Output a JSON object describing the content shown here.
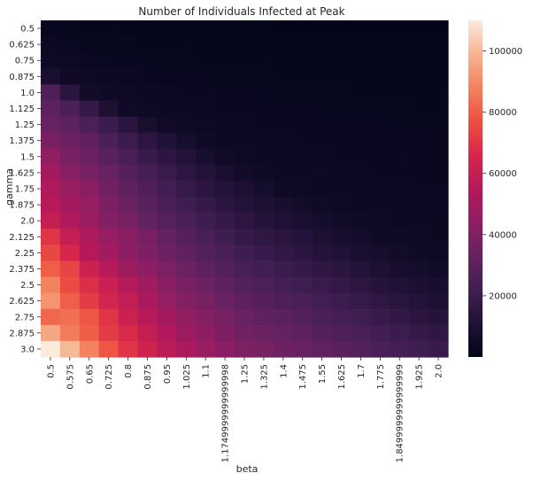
{
  "chart_data": {
    "type": "heatmap",
    "title": "Number of Individuals Infected at Peak",
    "xlabel": "beta",
    "ylabel": "gamma",
    "x_categories": [
      "0.5",
      "0.575",
      "0.65",
      "0.725",
      "0.8",
      "0.875",
      "0.95",
      "1.025",
      "1.1",
      "1.1749999999999998",
      "1.25",
      "1.325",
      "1.4",
      "1.475",
      "1.55",
      "1.625",
      "1.7",
      "1.775",
      "1.8499999999999999",
      "1.925",
      "2.0"
    ],
    "y_categories": [
      "0.5",
      "0.625",
      "0.75",
      "0.875",
      "1.0",
      "1.125",
      "1.25",
      "1.375",
      "1.5",
      "1.625",
      "1.75",
      "1.875",
      "2.0",
      "2.125",
      "2.25",
      "2.375",
      "2.5",
      "2.625",
      "2.75",
      "2.875",
      "3.0"
    ],
    "colorbar": {
      "ticks": [
        20000,
        40000,
        60000,
        80000,
        100000
      ],
      "vmin": 0,
      "vmax": 110000,
      "colormap": "rocket"
    },
    "values": [
      [
        2000,
        1500,
        1200,
        1000,
        900,
        800,
        700,
        600,
        600,
        500,
        500,
        500,
        400,
        400,
        400,
        400,
        400,
        300,
        300,
        300,
        300
      ],
      [
        3000,
        2500,
        2000,
        1700,
        1500,
        1300,
        1100,
        1000,
        900,
        800,
        800,
        700,
        700,
        600,
        600,
        600,
        500,
        500,
        500,
        500,
        500
      ],
      [
        4000,
        3500,
        3000,
        2500,
        2000,
        1800,
        1600,
        1400,
        1300,
        1200,
        1100,
        1000,
        900,
        900,
        800,
        800,
        700,
        700,
        700,
        600,
        600
      ],
      [
        9000,
        5000,
        4000,
        3500,
        3000,
        2500,
        2200,
        2000,
        1800,
        1600,
        1500,
        1400,
        1300,
        1200,
        1100,
        1000,
        1000,
        900,
        900,
        800,
        800
      ],
      [
        26000,
        14000,
        6000,
        4500,
        4000,
        3500,
        3000,
        2700,
        2400,
        2200,
        2000,
        1800,
        1700,
        1600,
        1500,
        1400,
        1300,
        1200,
        1100,
        1000,
        1000
      ],
      [
        30000,
        25000,
        18000,
        10000,
        5000,
        4000,
        3500,
        3200,
        2900,
        2600,
        2400,
        2200,
        2000,
        1900,
        1800,
        1700,
        1600,
        1500,
        1400,
        1300,
        1200
      ],
      [
        33000,
        30000,
        25000,
        20000,
        14000,
        8000,
        5000,
        4000,
        3500,
        3200,
        2900,
        2700,
        2500,
        2300,
        2100,
        2000,
        1900,
        1800,
        1700,
        1600,
        1500
      ],
      [
        38000,
        35000,
        31000,
        25000,
        20000,
        15000,
        11000,
        7000,
        4500,
        3800,
        3400,
        3100,
        2900,
        2700,
        2500,
        2300,
        2200,
        2100,
        2000,
        1900,
        1800
      ],
      [
        45000,
        38000,
        34000,
        29000,
        24000,
        19000,
        15000,
        12000,
        8000,
        5500,
        4200,
        3600,
        3300,
        3100,
        2900,
        2700,
        2500,
        2400,
        2300,
        2200,
        2100
      ],
      [
        50000,
        42000,
        38000,
        33000,
        28000,
        23000,
        19000,
        15000,
        12000,
        9000,
        6000,
        4500,
        3800,
        3500,
        3300,
        3100,
        2900,
        2700,
        2600,
        2500,
        2400
      ],
      [
        53000,
        47000,
        43000,
        36000,
        31000,
        26000,
        22000,
        18000,
        15000,
        12000,
        9500,
        7000,
        5000,
        4000,
        3700,
        3400,
        3200,
        3000,
        2900,
        2800,
        2700
      ],
      [
        56000,
        50000,
        46000,
        39000,
        34000,
        29000,
        25000,
        21000,
        18000,
        15000,
        12000,
        10000,
        8000,
        6000,
        4500,
        4000,
        3600,
        3400,
        3200,
        3100,
        3000
      ],
      [
        60000,
        54000,
        48000,
        41000,
        37000,
        32000,
        28000,
        24000,
        21000,
        18000,
        15000,
        13000,
        11000,
        9000,
        7000,
        5500,
        4500,
        4000,
        3700,
        3500,
        3300
      ],
      [
        70000,
        60000,
        53000,
        47000,
        43000,
        38000,
        32000,
        28000,
        24000,
        21000,
        18000,
        16000,
        14000,
        12000,
        10000,
        8000,
        6500,
        5000,
        4400,
        4000,
        3700
      ],
      [
        75000,
        66000,
        55000,
        50000,
        44000,
        40000,
        35000,
        31000,
        27000,
        24000,
        21000,
        19000,
        17000,
        15000,
        13000,
        11000,
        9000,
        7500,
        6000,
        5000,
        4300
      ],
      [
        80000,
        74000,
        62000,
        56000,
        48000,
        44000,
        39000,
        34000,
        30000,
        27000,
        24000,
        22000,
        20000,
        18000,
        16000,
        14000,
        12000,
        10000,
        8500,
        7000,
        5500
      ],
      [
        88000,
        76000,
        68000,
        61000,
        55000,
        49000,
        43000,
        38000,
        34000,
        30000,
        27000,
        25000,
        23000,
        21000,
        19000,
        17000,
        15000,
        13000,
        11000,
        9500,
        8000
      ],
      [
        92000,
        80000,
        72000,
        64000,
        59000,
        52000,
        46000,
        41000,
        37000,
        33000,
        30000,
        28000,
        26000,
        24000,
        22000,
        20000,
        18000,
        16000,
        14000,
        12000,
        10000
      ],
      [
        82000,
        84000,
        78000,
        70000,
        62000,
        56000,
        50000,
        45000,
        41000,
        37000,
        33000,
        31000,
        29000,
        27000,
        25000,
        23000,
        21000,
        19000,
        17000,
        15000,
        13000
      ],
      [
        96000,
        87000,
        80000,
        72000,
        67000,
        60000,
        54000,
        48000,
        44000,
        40000,
        36000,
        34000,
        32000,
        30000,
        28000,
        26000,
        24000,
        22000,
        20000,
        18000,
        16000
      ],
      [
        110000,
        100000,
        88000,
        78000,
        70000,
        63000,
        57000,
        52000,
        47000,
        43000,
        39000,
        37000,
        35000,
        33000,
        31000,
        29000,
        27000,
        25000,
        23000,
        21000,
        19000
      ]
    ]
  }
}
